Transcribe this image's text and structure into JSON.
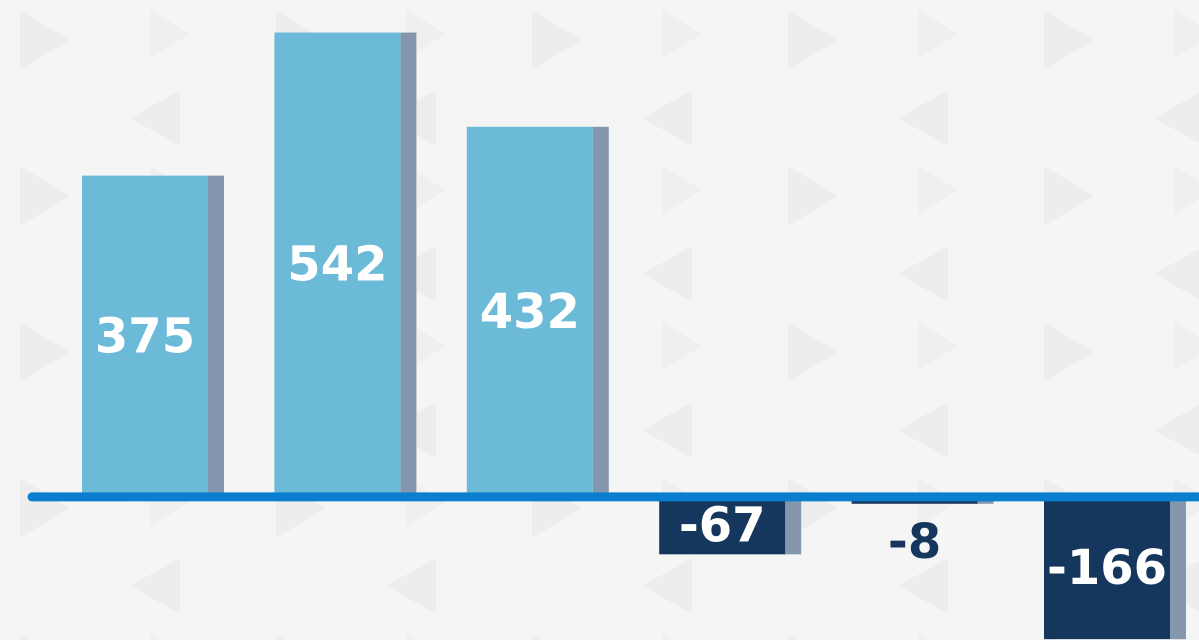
{
  "chart_data": {
    "type": "bar",
    "values": [
      375,
      542,
      432,
      -67,
      -8,
      -166
    ],
    "color": "#6bbad8",
    "negative_color": "#15375e",
    "shadow_color": "#8497ae",
    "axis_color": "#0a7fd0",
    "ylim": [
      -167,
      580
    ]
  }
}
